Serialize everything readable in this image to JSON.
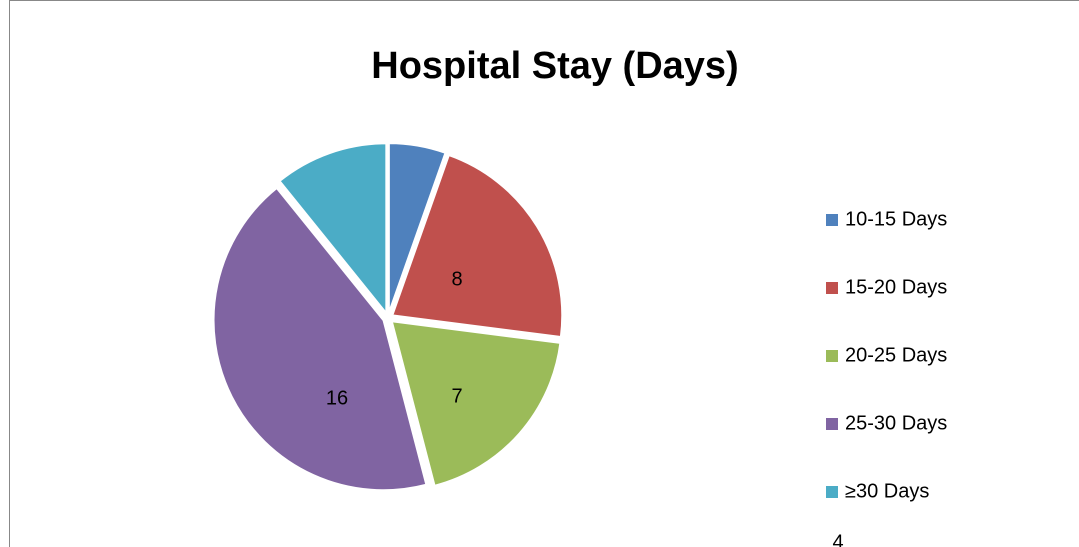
{
  "chart_data": {
    "type": "pie",
    "title": "Hospital Stay (Days)",
    "categories": [
      "10-15 Days",
      "15-20 Days",
      "20-25 Days",
      "25-30 Days",
      "≥30 Days"
    ],
    "values": [
      2,
      8,
      7,
      16,
      4
    ],
    "colors": [
      "#4f81bd",
      "#c0504d",
      "#9bbb59",
      "#8064a2",
      "#4bacc6"
    ],
    "annotations": [
      "4"
    ],
    "legend": "right"
  }
}
